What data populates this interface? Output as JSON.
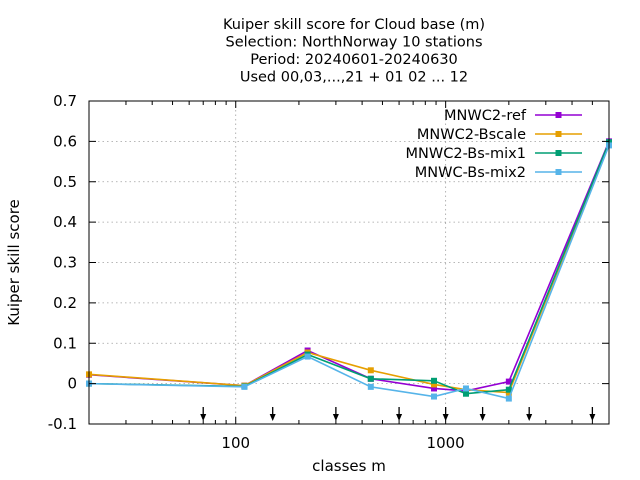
{
  "chart_data": {
    "type": "line",
    "title_lines": [
      "Kuiper skill score  for Cloud base (m)",
      "Selection: NorthNorway      10 stations",
      "Period: 20240601-20240630",
      "Used 00,03,...,21 + 01 02 ... 12"
    ],
    "xlabel": "classes m",
    "ylabel": "Kuiper skill score",
    "x_scale": "log",
    "xlim": [
      20,
      6000
    ],
    "ylim": [
      -0.1,
      0.7
    ],
    "x_ticks": [
      100,
      1000
    ],
    "x_tick_labels": [
      "100",
      "1000"
    ],
    "y_ticks": [
      -0.1,
      0,
      0.1,
      0.2,
      0.3,
      0.4,
      0.5,
      0.6,
      0.7
    ],
    "y_tick_labels": [
      "-0.1",
      "0",
      "0.1",
      "0.2",
      "0.3",
      "0.4",
      "0.5",
      "0.6",
      "0.7"
    ],
    "grid": true,
    "legend_position": "top-right",
    "class_marker_x": [
      70,
      150,
      300,
      600,
      1000,
      1500,
      2500,
      5000
    ],
    "series": [
      {
        "name": "MNWC2-ref",
        "color": "#9400d3",
        "x": [
          20,
          110,
          220,
          440,
          880,
          1250,
          2000,
          6000
        ],
        "y": [
          0.022,
          -0.005,
          0.082,
          0.012,
          -0.012,
          -0.018,
          0.005,
          0.6
        ]
      },
      {
        "name": "MNWC2-Bscale",
        "color": "#e69f00",
        "x": [
          20,
          110,
          220,
          440,
          880,
          1250,
          2000,
          6000
        ],
        "y": [
          0.023,
          -0.005,
          0.077,
          0.033,
          -0.002,
          -0.015,
          -0.022,
          0.595
        ]
      },
      {
        "name": "MNWC2-Bs-mix1",
        "color": "#009e73",
        "x": [
          20,
          110,
          220,
          440,
          880,
          1250,
          2000,
          6000
        ],
        "y": [
          0.0,
          -0.007,
          0.072,
          0.012,
          0.007,
          -0.025,
          -0.015,
          0.598
        ]
      },
      {
        "name": "MNWC-Bs-mix2",
        "color": "#56b4e9",
        "x": [
          20,
          110,
          220,
          440,
          880,
          1250,
          2000,
          6000
        ],
        "y": [
          0.0,
          -0.008,
          0.067,
          -0.008,
          -0.032,
          -0.012,
          -0.037,
          0.59
        ]
      }
    ]
  }
}
